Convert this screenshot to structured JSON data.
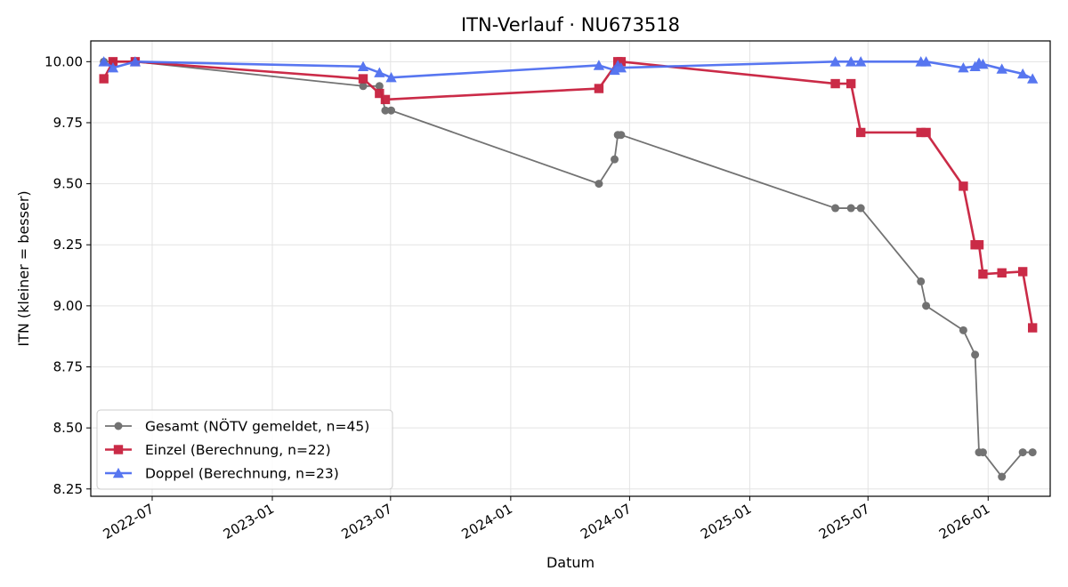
{
  "chart_data": {
    "type": "line",
    "title": "ITN-Verlauf · NU673518",
    "xlabel": "Datum",
    "ylabel": "ITN  (kleiner = besser)",
    "x_axis": "date",
    "xlim": [
      "2022-03-29",
      "2026-04-06"
    ],
    "ylim": [
      8.22,
      10.085
    ],
    "x_ticks": [
      {
        "date": "2022-07-01",
        "label": "2022-07"
      },
      {
        "date": "2023-01-01",
        "label": "2023-01"
      },
      {
        "date": "2023-07-01",
        "label": "2023-07"
      },
      {
        "date": "2024-01-01",
        "label": "2024-01"
      },
      {
        "date": "2024-07-01",
        "label": "2024-07"
      },
      {
        "date": "2025-01-01",
        "label": "2025-01"
      },
      {
        "date": "2025-07-01",
        "label": "2025-07"
      },
      {
        "date": "2026-01-01",
        "label": "2026-01"
      }
    ],
    "y_ticks": [
      {
        "value": 8.25,
        "label": "8.25"
      },
      {
        "value": 8.5,
        "label": "8.50"
      },
      {
        "value": 8.75,
        "label": "8.75"
      },
      {
        "value": 9.0,
        "label": "9.00"
      },
      {
        "value": 9.25,
        "label": "9.25"
      },
      {
        "value": 9.5,
        "label": "9.50"
      },
      {
        "value": 9.75,
        "label": "9.75"
      },
      {
        "value": 10.0,
        "label": "10.00"
      }
    ],
    "grid": true,
    "legend_position": "bottom-left",
    "series": [
      {
        "name": "Gesamt (NÖTV gemeldet, n=45)",
        "color": "#444444",
        "marker": "circle",
        "points": [
          {
            "x": "2022-04-18",
            "y": 10.0
          },
          {
            "x": "2022-05-02",
            "y": 10.0
          },
          {
            "x": "2022-06-05",
            "y": 10.0
          },
          {
            "x": "2023-05-20",
            "y": 9.9
          },
          {
            "x": "2023-06-14",
            "y": 9.9
          },
          {
            "x": "2023-06-23",
            "y": 9.8
          },
          {
            "x": "2023-07-02",
            "y": 9.8
          },
          {
            "x": "2024-05-15",
            "y": 9.5
          },
          {
            "x": "2024-06-08",
            "y": 9.6
          },
          {
            "x": "2024-06-13",
            "y": 9.7
          },
          {
            "x": "2024-06-18",
            "y": 9.7
          },
          {
            "x": "2025-05-12",
            "y": 9.4
          },
          {
            "x": "2025-06-05",
            "y": 9.4
          },
          {
            "x": "2025-06-20",
            "y": 9.4
          },
          {
            "x": "2025-09-20",
            "y": 9.1
          },
          {
            "x": "2025-09-28",
            "y": 9.0
          },
          {
            "x": "2025-11-24",
            "y": 8.9
          },
          {
            "x": "2025-12-12",
            "y": 8.8
          },
          {
            "x": "2025-12-18",
            "y": 8.4
          },
          {
            "x": "2025-12-24",
            "y": 8.4
          },
          {
            "x": "2026-01-22",
            "y": 8.3
          },
          {
            "x": "2026-02-23",
            "y": 8.4
          },
          {
            "x": "2026-03-10",
            "y": 8.4
          }
        ]
      },
      {
        "name": "Einzel (Berechnung, n=22)",
        "color": "#c8203e",
        "marker": "square",
        "points": [
          {
            "x": "2022-04-18",
            "y": 9.93
          },
          {
            "x": "2022-05-02",
            "y": 10.0
          },
          {
            "x": "2022-06-05",
            "y": 10.0
          },
          {
            "x": "2023-05-20",
            "y": 9.93
          },
          {
            "x": "2023-06-14",
            "y": 9.87
          },
          {
            "x": "2023-06-23",
            "y": 9.845
          },
          {
            "x": "2024-05-15",
            "y": 9.89
          },
          {
            "x": "2024-06-13",
            "y": 10.0
          },
          {
            "x": "2024-06-18",
            "y": 10.0
          },
          {
            "x": "2025-05-12",
            "y": 9.91
          },
          {
            "x": "2025-06-05",
            "y": 9.91
          },
          {
            "x": "2025-06-20",
            "y": 9.71
          },
          {
            "x": "2025-09-20",
            "y": 9.71
          },
          {
            "x": "2025-09-28",
            "y": 9.71
          },
          {
            "x": "2025-11-24",
            "y": 9.49
          },
          {
            "x": "2025-12-12",
            "y": 9.25
          },
          {
            "x": "2025-12-18",
            "y": 9.25
          },
          {
            "x": "2025-12-24",
            "y": 9.13
          },
          {
            "x": "2026-01-22",
            "y": 9.135
          },
          {
            "x": "2026-02-23",
            "y": 9.14
          },
          {
            "x": "2026-03-10",
            "y": 8.91
          }
        ]
      },
      {
        "name": "Doppel (Berechnung, n=23)",
        "color": "#4f6ff0",
        "marker": "triangle",
        "points": [
          {
            "x": "2022-04-18",
            "y": 10.0
          },
          {
            "x": "2022-05-02",
            "y": 9.975
          },
          {
            "x": "2022-06-05",
            "y": 10.0
          },
          {
            "x": "2023-05-20",
            "y": 9.98
          },
          {
            "x": "2023-06-14",
            "y": 9.955
          },
          {
            "x": "2023-07-02",
            "y": 9.935
          },
          {
            "x": "2024-05-15",
            "y": 9.985
          },
          {
            "x": "2024-06-08",
            "y": 9.965
          },
          {
            "x": "2024-06-13",
            "y": 9.985
          },
          {
            "x": "2024-06-18",
            "y": 9.975
          },
          {
            "x": "2025-05-12",
            "y": 10.0
          },
          {
            "x": "2025-06-05",
            "y": 10.0
          },
          {
            "x": "2025-06-20",
            "y": 10.0
          },
          {
            "x": "2025-09-20",
            "y": 10.0
          },
          {
            "x": "2025-09-28",
            "y": 10.0
          },
          {
            "x": "2025-11-24",
            "y": 9.975
          },
          {
            "x": "2025-12-12",
            "y": 9.98
          },
          {
            "x": "2025-12-18",
            "y": 9.995
          },
          {
            "x": "2025-12-24",
            "y": 9.99
          },
          {
            "x": "2026-01-22",
            "y": 9.97
          },
          {
            "x": "2026-02-23",
            "y": 9.95
          },
          {
            "x": "2026-03-10",
            "y": 9.93
          }
        ]
      }
    ]
  }
}
